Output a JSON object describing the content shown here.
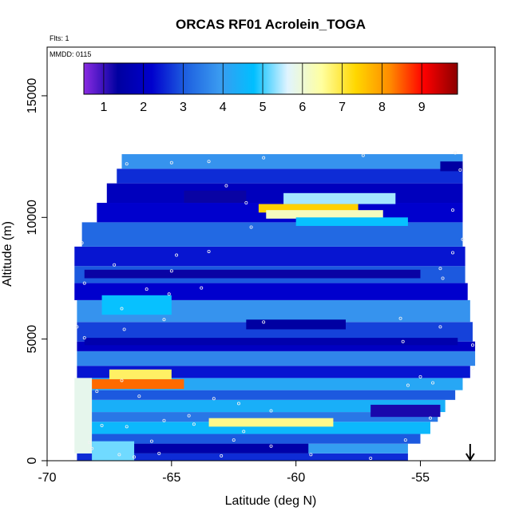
{
  "chart_data": {
    "type": "heatmap",
    "title": "ORCAS RF01 Acrolein_TOGA",
    "notes": [
      "Flts: 1",
      "MMDD: 0115"
    ],
    "xlabel": "Latitude (deg N)",
    "ylabel": "Altitude (m)",
    "xlim": [
      -70,
      -52
    ],
    "ylim": [
      0,
      17000
    ],
    "x_ticks": [
      -70,
      -65,
      -60,
      -55
    ],
    "y_ticks": [
      0,
      5000,
      10000,
      15000
    ],
    "grid": false,
    "legend": "top colorbar",
    "colorbar": {
      "range": [
        0.5,
        9.9
      ],
      "ticks": [
        "1",
        "2",
        "3",
        "4",
        "5",
        "6",
        "7",
        "8",
        "9"
      ],
      "colors": [
        "#8a2be2",
        "#0000a0",
        "#0000cd",
        "#1e60e0",
        "#3a9bf0",
        "#00bfff",
        "#e0f4ff",
        "#ffffa0",
        "#ffd700",
        "#ff8c00",
        "#ff0000",
        "#8b0000"
      ]
    },
    "bands": [
      {
        "alt": [
          0,
          300
        ],
        "lat": [
          -68.8,
          -55.5
        ],
        "level": 2.6
      },
      {
        "alt": [
          300,
          700
        ],
        "lat": [
          -68.8,
          -55.5
        ],
        "level": 4.0
      },
      {
        "alt": [
          700,
          1100
        ],
        "lat": [
          -68.8,
          -55.0
        ],
        "level": 3.0
      },
      {
        "alt": [
          1100,
          1600
        ],
        "lat": [
          -68.8,
          -54.6
        ],
        "level": 4.6
      },
      {
        "alt": [
          1600,
          2000
        ],
        "lat": [
          -68.8,
          -54.3
        ],
        "level": 3.4
      },
      {
        "alt": [
          2000,
          2500
        ],
        "lat": [
          -68.8,
          -54.0
        ],
        "level": 4.4
      },
      {
        "alt": [
          2500,
          2900
        ],
        "lat": [
          -68.8,
          -53.6
        ],
        "level": 3.0
      },
      {
        "alt": [
          2900,
          3400
        ],
        "lat": [
          -68.8,
          -53.3
        ],
        "level": 4.2
      },
      {
        "alt": [
          3400,
          3900
        ],
        "lat": [
          -68.8,
          -53.0
        ],
        "level": 2.4
      },
      {
        "alt": [
          3900,
          4500
        ],
        "lat": [
          -68.8,
          -52.8
        ],
        "level": 3.6
      },
      {
        "alt": [
          4500,
          4900
        ],
        "lat": [
          -68.8,
          -52.8
        ],
        "level": 2.0
      },
      {
        "alt": [
          4900,
          5700
        ],
        "lat": [
          -68.8,
          -52.9
        ],
        "level": 2.8
      },
      {
        "alt": [
          5700,
          6600
        ],
        "lat": [
          -68.8,
          -53.0
        ],
        "level": 3.8
      },
      {
        "alt": [
          6600,
          7300
        ],
        "lat": [
          -68.9,
          -53.1
        ],
        "level": 2.2
      },
      {
        "alt": [
          7300,
          8000
        ],
        "lat": [
          -68.9,
          -53.2
        ],
        "level": 3.0
      },
      {
        "alt": [
          8000,
          8800
        ],
        "lat": [
          -68.9,
          -53.2
        ],
        "level": 2.4
      },
      {
        "alt": [
          8800,
          9800
        ],
        "lat": [
          -68.6,
          -53.3
        ],
        "level": 3.2
      },
      {
        "alt": [
          9800,
          10600
        ],
        "lat": [
          -68.0,
          -53.3
        ],
        "level": 2.2
      },
      {
        "alt": [
          10600,
          11400
        ],
        "lat": [
          -67.6,
          -53.3
        ],
        "level": 1.9
      },
      {
        "alt": [
          11400,
          12000
        ],
        "lat": [
          -67.2,
          -53.3
        ],
        "level": 2.6
      },
      {
        "alt": [
          12000,
          12600
        ],
        "lat": [
          -67.0,
          -53.3
        ],
        "level": 3.8
      }
    ],
    "features": [
      {
        "alt": [
          2950,
          3350
        ],
        "lat": [
          -68.5,
          -64.5
        ],
        "level": 8.4
      },
      {
        "alt": [
          3350,
          3750
        ],
        "lat": [
          -67.5,
          -65.0
        ],
        "level": 6.8
      },
      {
        "alt": [
          10200,
          10550
        ],
        "lat": [
          -61.5,
          -57.5
        ],
        "level": 7.4
      },
      {
        "alt": [
          9950,
          10300
        ],
        "lat": [
          -61.2,
          -56.5
        ],
        "level": 6.2
      },
      {
        "alt": [
          10550,
          11000
        ],
        "lat": [
          -60.5,
          -56.0
        ],
        "level": 5.4
      },
      {
        "alt": [
          9650,
          10000
        ],
        "lat": [
          -60.0,
          -55.5
        ],
        "level": 4.8
      },
      {
        "alt": [
          1400,
          1750
        ],
        "lat": [
          -63.5,
          -58.5
        ],
        "level": 6.6
      },
      {
        "alt": [
          300,
          3400
        ],
        "lat": [
          -68.9,
          -68.2
        ],
        "level": 5.8
      },
      {
        "alt": [
          0,
          800
        ],
        "lat": [
          -68.2,
          -66.5
        ],
        "level": 5.2
      },
      {
        "alt": [
          10600,
          11100
        ],
        "lat": [
          -64.5,
          -62.0
        ],
        "level": 1.3
      },
      {
        "alt": [
          7500,
          7850
        ],
        "lat": [
          -68.5,
          -55.0
        ],
        "level": 1.3
      },
      {
        "alt": [
          5400,
          5800
        ],
        "lat": [
          -62.0,
          -58.0
        ],
        "level": 1.4
      },
      {
        "alt": [
          4750,
          5050
        ],
        "lat": [
          -68.5,
          -53.5
        ],
        "level": 1.6
      },
      {
        "alt": [
          300,
          700
        ],
        "lat": [
          -66.5,
          -59.5
        ],
        "level": 1.5
      },
      {
        "alt": [
          1800,
          2300
        ],
        "lat": [
          -57.0,
          -54.2
        ],
        "level": 1.2
      },
      {
        "alt": [
          11900,
          12300
        ],
        "lat": [
          -54.2,
          -53.3
        ],
        "level": 1.4
      },
      {
        "alt": [
          6000,
          6800
        ],
        "lat": [
          -67.8,
          -65.0
        ],
        "level": 4.8
      }
    ],
    "points": [
      [
        -66.8,
        12200
      ],
      [
        -65.0,
        12250
      ],
      [
        -63.5,
        12300
      ],
      [
        -61.3,
        12450
      ],
      [
        -57.3,
        12550
      ],
      [
        -53.6,
        12650
      ],
      [
        -53.4,
        11950
      ],
      [
        -62.8,
        11300
      ],
      [
        -62.0,
        10600
      ],
      [
        -61.8,
        9600
      ],
      [
        -53.7,
        10300
      ],
      [
        -53.3,
        9100
      ],
      [
        -63.5,
        8600
      ],
      [
        -68.6,
        8950
      ],
      [
        -67.3,
        8050
      ],
      [
        -64.8,
        8450
      ],
      [
        -53.7,
        8550
      ],
      [
        -65.0,
        7800
      ],
      [
        -68.5,
        7300
      ],
      [
        -66.0,
        7050
      ],
      [
        -63.8,
        7100
      ],
      [
        -54.1,
        7500
      ],
      [
        -54.2,
        7900
      ],
      [
        -65.1,
        6850
      ],
      [
        -67.0,
        6250
      ],
      [
        -65.3,
        5800
      ],
      [
        -55.8,
        5850
      ],
      [
        -68.8,
        5500
      ],
      [
        -54.2,
        5500
      ],
      [
        -68.5,
        5050
      ],
      [
        -66.9,
        5400
      ],
      [
        -61.3,
        5700
      ],
      [
        -55.7,
        4900
      ],
      [
        -52.9,
        4750
      ],
      [
        -52.9,
        3800
      ],
      [
        -55.0,
        3450
      ],
      [
        -54.5,
        3200
      ],
      [
        -55.5,
        3100
      ],
      [
        -67.0,
        3300
      ],
      [
        -68.0,
        2850
      ],
      [
        -66.3,
        2650
      ],
      [
        -63.3,
        2550
      ],
      [
        -62.3,
        2350
      ],
      [
        -61.0,
        2050
      ],
      [
        -64.3,
        1850
      ],
      [
        -65.3,
        1650
      ],
      [
        -67.8,
        1450
      ],
      [
        -66.8,
        1400
      ],
      [
        -64.1,
        1500
      ],
      [
        -62.1,
        1200
      ],
      [
        -54.6,
        1750
      ],
      [
        -55.6,
        850
      ],
      [
        -68.3,
        750
      ],
      [
        -65.8,
        800
      ],
      [
        -62.5,
        850
      ],
      [
        -61.0,
        600
      ],
      [
        -59.4,
        250
      ],
      [
        -57.0,
        100
      ],
      [
        -63.0,
        200
      ],
      [
        -65.5,
        300
      ],
      [
        -67.1,
        250
      ],
      [
        -68.2,
        500
      ],
      [
        -66.5,
        150
      ]
    ],
    "arrow_lat": -53.0
  }
}
